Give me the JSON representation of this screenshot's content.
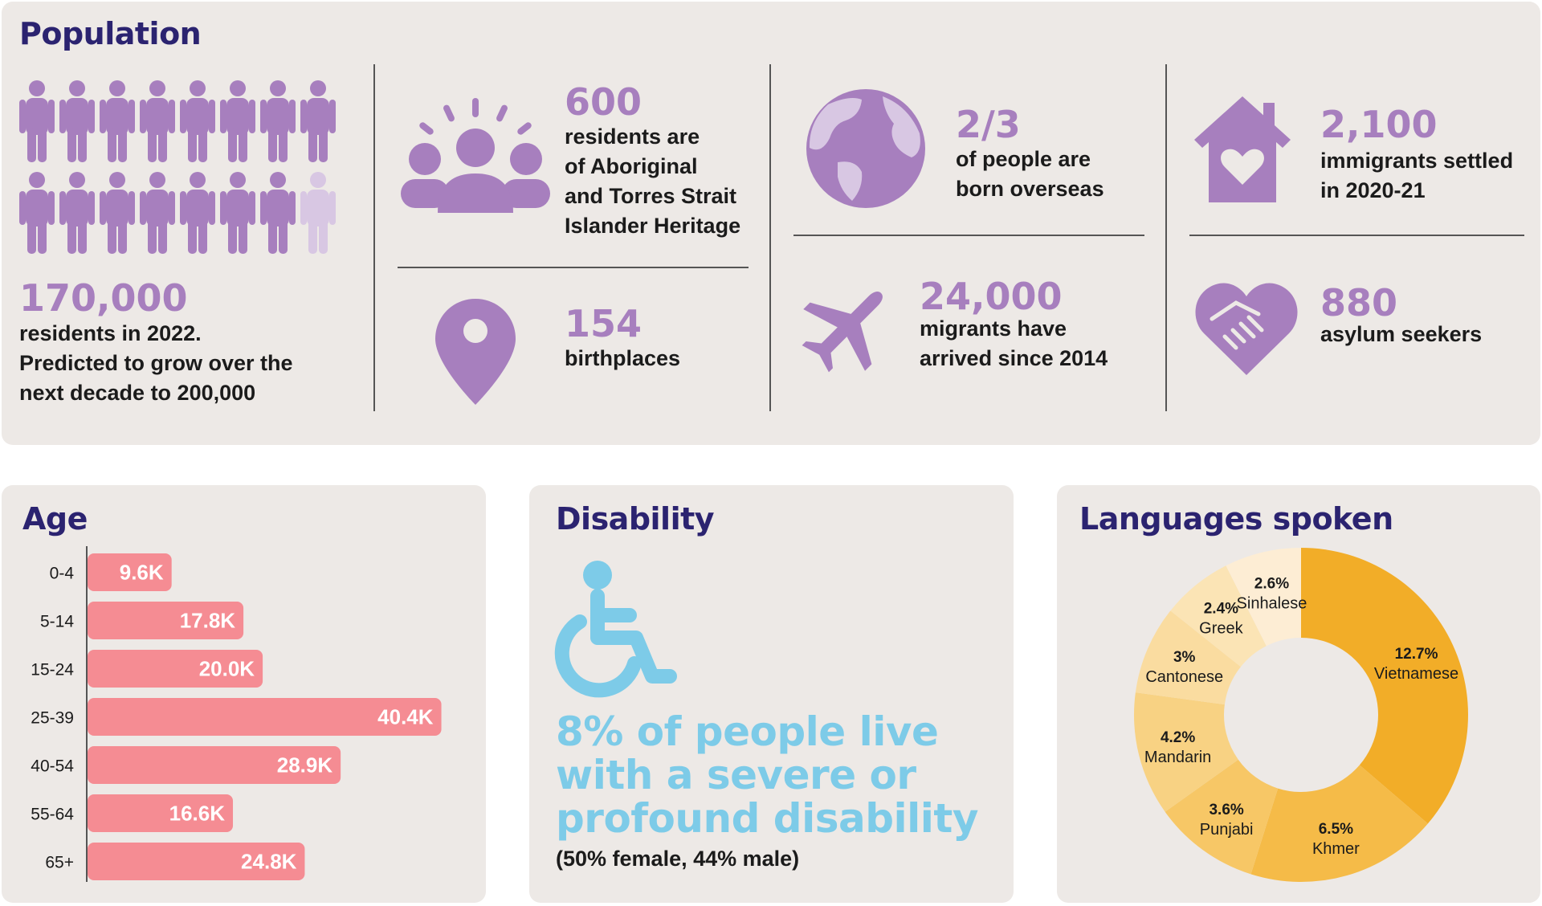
{
  "colors": {
    "panel_bg": "#ede9e6",
    "heading": "#2b2370",
    "purple": "#a77fbe",
    "purple_light": "#d8c7e3",
    "bar": "#f58c93",
    "accent_blue": "#7dcbe8",
    "donut_dark": "#f2ad28"
  },
  "population": {
    "title": "Population",
    "residents": {
      "figure": "170,000",
      "lines": [
        "residents in 2022.",
        "Predicted to grow over the",
        "next decade to 200,000"
      ],
      "icon_count_full": 15,
      "icon_count_total": 16
    },
    "aboriginal": {
      "figure": "600",
      "lines": [
        "residents are",
        "of Aboriginal",
        "and Torres Strait",
        "Islander Heritage"
      ],
      "icon": "community-people-icon"
    },
    "birthplaces": {
      "figure": "154",
      "lines": [
        "birthplaces"
      ],
      "icon": "location-pin-icon"
    },
    "overseas": {
      "figure": "2/3",
      "lines": [
        "of people are",
        "born overseas"
      ],
      "icon": "globe-icon"
    },
    "migrants": {
      "figure": "24,000",
      "lines": [
        "migrants have",
        "arrived since 2014"
      ],
      "icon": "airplane-icon"
    },
    "immigrants": {
      "figure": "2,100",
      "lines": [
        "immigrants settled",
        "in 2020-21"
      ],
      "icon": "house-heart-icon"
    },
    "asylum": {
      "figure": "880",
      "lines": [
        "asylum seekers"
      ],
      "icon": "heart-handshake-icon"
    }
  },
  "disability": {
    "title": "Disability",
    "icon": "wheelchair-icon",
    "headline_lines": [
      "8% of people live",
      "with a severe or",
      "profound disability"
    ],
    "note": "(50% female, 44% male)"
  },
  "chart_data": [
    {
      "type": "bar",
      "orientation": "horizontal",
      "title": "Age",
      "categories": [
        "0-4",
        "5-14",
        "15-24",
        "25-39",
        "40-54",
        "55-64",
        "65+"
      ],
      "values": [
        9.6,
        17.8,
        20.0,
        40.4,
        28.9,
        16.6,
        24.8
      ],
      "labels": [
        "9.6K",
        "17.8K",
        "20.0K",
        "40.4K",
        "28.9K",
        "16.6K",
        "24.8K"
      ],
      "unit": "K",
      "xlim": [
        0,
        42
      ]
    },
    {
      "type": "pie",
      "variant": "donut",
      "title": "Languages spoken",
      "categories": [
        "Vietnamese",
        "Khmer",
        "Punjabi",
        "Mandarin",
        "Cantonese",
        "Greek",
        "Sinhalese"
      ],
      "values": [
        12.7,
        6.5,
        3.6,
        4.2,
        3,
        2.4,
        2.6
      ],
      "labels": [
        "12.7%",
        "6.5%",
        "3.6%",
        "4.2%",
        "3%",
        "2.4%",
        "2.6%"
      ],
      "colors": [
        "#f2ad28",
        "#f5bb48",
        "#f7c766",
        "#f8d283",
        "#fadca0",
        "#fbe4b5",
        "#fdedd4"
      ]
    }
  ]
}
